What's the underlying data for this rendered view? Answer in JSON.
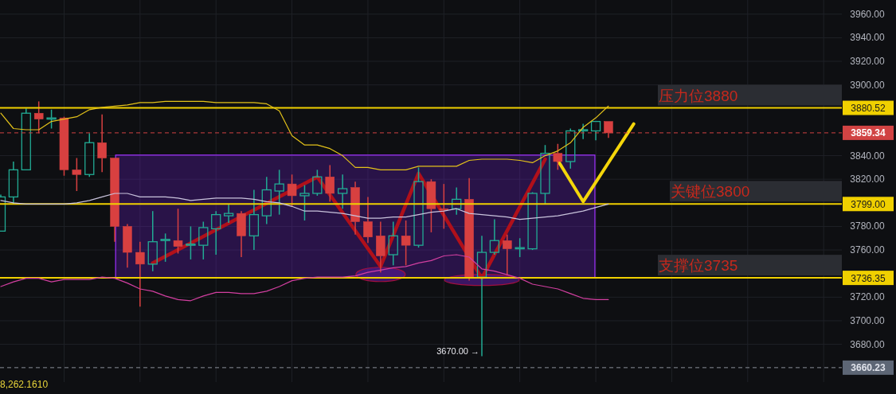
{
  "chart_data": {
    "type": "candlestick",
    "categories": [
      null,
      null,
      null,
      null,
      null,
      null,
      null,
      null,
      null,
      null,
      null,
      null,
      null,
      null,
      null,
      null,
      null,
      null,
      null,
      null,
      null,
      null,
      null,
      null,
      null,
      null,
      null,
      null,
      null,
      null,
      null,
      null,
      null,
      null,
      null,
      null,
      null,
      null,
      null,
      null,
      null,
      null,
      null,
      null,
      null,
      null,
      null,
      null,
      null,
      null,
      null,
      null,
      null,
      null,
      null,
      null,
      null,
      null,
      null,
      null,
      null,
      null,
      null,
      null,
      null,
      null,
      null
    ],
    "ohlc": [
      [
        3776,
        3807,
        3776,
        3805
      ],
      [
        3805,
        3835,
        3799,
        3828
      ],
      [
        3828,
        3880,
        3828,
        3876
      ],
      [
        3876,
        3886,
        3859,
        3871
      ],
      [
        3871,
        3879,
        3863,
        3872
      ],
      [
        3872,
        3873,
        3823,
        3828
      ],
      [
        3828,
        3838,
        3810,
        3824
      ],
      [
        3824,
        3859,
        3822,
        3851
      ],
      [
        3851,
        3875,
        3826,
        3838
      ],
      [
        3838,
        3838,
        3767,
        3780
      ],
      [
        3780,
        3782,
        3745,
        3758
      ],
      [
        3758,
        3767,
        3712,
        3748
      ],
      [
        3748,
        3793,
        3742,
        3767
      ],
      [
        3768,
        3774,
        3750,
        3769
      ],
      [
        3768,
        3795,
        3757,
        3763
      ],
      [
        3764,
        3780,
        3752,
        3765
      ],
      [
        3764,
        3784,
        3752,
        3779
      ],
      [
        3778,
        3793,
        3756,
        3790
      ],
      [
        3789,
        3799,
        3783,
        3791
      ],
      [
        3791,
        3793,
        3754,
        3772
      ],
      [
        3772,
        3811,
        3760,
        3790
      ],
      [
        3789,
        3822,
        3782,
        3811
      ],
      [
        3810,
        3828,
        3790,
        3816
      ],
      [
        3816,
        3824,
        3797,
        3806
      ],
      [
        3806,
        3815,
        3785,
        3808
      ],
      [
        3808,
        3828,
        3806,
        3822
      ],
      [
        3822,
        3832,
        3801,
        3808
      ],
      [
        3808,
        3824,
        3795,
        3812
      ],
      [
        3813,
        3818,
        3773,
        3784
      ],
      [
        3784,
        3805,
        3766,
        3771
      ],
      [
        3772,
        3784,
        3741,
        3755
      ],
      [
        3756,
        3784,
        3747,
        3772
      ],
      [
        3772,
        3785,
        3747,
        3764
      ],
      [
        3764,
        3830,
        3762,
        3818
      ],
      [
        3818,
        3820,
        3775,
        3795
      ],
      [
        3795,
        3816,
        3778,
        3794
      ],
      [
        3795,
        3813,
        3790,
        3803
      ],
      [
        3803,
        3821,
        3734,
        3737
      ],
      [
        3737,
        3772,
        3670,
        3758
      ],
      [
        3758,
        3786,
        3756,
        3768
      ],
      [
        3768,
        3773,
        3739,
        3761
      ],
      [
        3761,
        3770,
        3754,
        3762
      ],
      [
        3761,
        3809,
        3760,
        3808
      ],
      [
        3808,
        3849,
        3799,
        3842
      ],
      [
        3842,
        3850,
        3828,
        3835
      ],
      [
        3835,
        3863,
        3829,
        3861
      ],
      [
        3861,
        3867,
        3854,
        3862
      ],
      [
        3861,
        3869,
        3853,
        3869
      ],
      [
        3869,
        3869,
        3855,
        3859.34
      ],
      null,
      null,
      null,
      null,
      null,
      null,
      null,
      null,
      null,
      null,
      null,
      null,
      null,
      null,
      null,
      null,
      null,
      null
    ],
    "colors": [
      "#22ab94",
      "#22ab94",
      "#22ab94",
      "#d84040",
      "#22ab94",
      "#d84040",
      "#d84040",
      "#22ab94",
      "#d84040",
      "#d84040",
      "#d84040",
      "#d84040",
      "#22ab94",
      "#22ab94",
      "#d84040",
      "#22ab94",
      "#22ab94",
      "#22ab94",
      "#22ab94",
      "#d84040",
      "#22ab94",
      "#22ab94",
      "#22ab94",
      "#d84040",
      "#22ab94",
      "#22ab94",
      "#d84040",
      "#22ab94",
      "#d84040",
      "#d84040",
      "#d84040",
      "#22ab94",
      "#d84040",
      "#22ab94",
      "#d84040",
      "#d84040",
      "#22ab94",
      "#d84040",
      "#22ab94",
      "#22ab94",
      "#d84040",
      "#22ab94",
      "#22ab94",
      "#22ab94",
      "#d84040",
      "#22ab94",
      "#22ab94",
      "#22ab94",
      "#d84040",
      null,
      null,
      null,
      null,
      null,
      null,
      null,
      null,
      null,
      null,
      null,
      null,
      null,
      null,
      null,
      null,
      null,
      null
    ],
    "series": [
      {
        "type": "line",
        "color": "#e3c21a",
        "values": [
          3876,
          3863,
          3862,
          3862,
          3869,
          3871,
          3873,
          3879,
          3881,
          3882,
          3883,
          3885,
          3885,
          3886,
          3886,
          3886,
          3886,
          3885,
          3885,
          3885,
          3885,
          3884,
          3878,
          3857,
          3849,
          3849,
          3846,
          3840,
          3830,
          3830,
          3828,
          3828,
          3828,
          3831,
          3831,
          3831,
          3831,
          3836,
          3837,
          null,
          3837,
          3836,
          3834,
          3840,
          3844,
          3851,
          3864,
          3872,
          3882,
          null,
          null,
          null,
          null,
          null,
          null,
          null,
          null,
          null,
          null,
          null,
          null,
          null,
          null,
          null,
          null,
          null,
          null
        ]
      },
      {
        "type": "line",
        "color": "#c9c3dc",
        "values": [
          3802,
          3800,
          3799,
          3799,
          3799,
          3799,
          3800,
          3802,
          3805,
          3808,
          3808,
          3805,
          3805,
          3805,
          3804,
          3802,
          3803,
          3804,
          3804,
          3804,
          3803,
          3801,
          3800,
          3797,
          3793,
          3793,
          3792,
          3791,
          3789,
          3787,
          3787,
          3788,
          3788,
          3790,
          3792,
          3793,
          3795,
          3791,
          3790,
          3789,
          3788,
          3786,
          3787,
          3788,
          3789,
          3791,
          3793,
          3796,
          3799,
          null,
          null,
          null,
          null,
          null,
          null,
          null,
          null,
          null,
          null,
          null,
          null,
          null,
          null,
          null,
          null,
          null,
          null
        ]
      },
      {
        "type": "line",
        "color": "#d23fa0",
        "values": [
          3729,
          3733,
          3736,
          3736,
          3733,
          3735,
          3735,
          3735,
          3737,
          3736,
          3732,
          3727,
          3725,
          3721,
          3718,
          3717,
          3721,
          3724,
          3724,
          3723,
          3723,
          3725,
          3729,
          3734,
          3736,
          3737,
          3737,
          3737,
          3738,
          3741,
          3743,
          3745,
          3746,
          3749,
          3751,
          3755,
          3756,
          3754,
          3744,
          3742,
          3739,
          3736,
          3731,
          3729,
          3727,
          3723,
          3719,
          3718,
          3718,
          null,
          null,
          null,
          null,
          null,
          null,
          null,
          null,
          null,
          null,
          null,
          null,
          null,
          null,
          null,
          null,
          null,
          null
        ]
      },
      {
        "type": "line",
        "color": "#b0101a",
        "values": [
          null,
          null,
          null,
          null,
          null,
          null,
          null,
          null,
          null,
          null,
          null,
          null,
          3749,
          null,
          null,
          null,
          null,
          null,
          null,
          null,
          null,
          null,
          null,
          null,
          null,
          3822,
          null,
          null,
          null,
          null,
          3746,
          null,
          null,
          3825,
          null,
          null,
          null,
          null,
          3736,
          null,
          null,
          null,
          null,
          3837,
          null,
          null,
          null,
          null,
          null,
          null,
          null,
          null,
          null,
          null,
          null,
          null,
          null,
          null,
          null,
          null,
          null,
          null,
          null,
          null,
          null,
          null,
          null
        ]
      },
      {
        "type": "line",
        "color": "#f5d60a",
        "values": [
          null,
          null,
          null,
          null,
          null,
          null,
          null,
          null,
          null,
          null,
          null,
          null,
          null,
          null,
          null,
          null,
          null,
          null,
          null,
          null,
          null,
          null,
          null,
          null,
          null,
          null,
          null,
          null,
          null,
          null,
          null,
          null,
          null,
          null,
          null,
          null,
          null,
          null,
          null,
          null,
          null,
          null,
          null,
          null,
          3836,
          null,
          3801,
          null,
          null,
          null,
          3867,
          null,
          null,
          null,
          null,
          null,
          null,
          null,
          null,
          null,
          null,
          null,
          null,
          null,
          null,
          null,
          null
        ]
      }
    ],
    "ylim": [
      3648,
      3972
    ],
    "yticks": [
      {
        "value": 3680,
        "label": "3680.00"
      },
      {
        "value": 3700,
        "label": "3700.00"
      },
      {
        "value": 3720,
        "label": "3720.00"
      },
      {
        "value": 3760,
        "label": "3760.00"
      },
      {
        "value": 3780,
        "label": "3780.00"
      },
      {
        "value": 3820,
        "label": "3820.00"
      },
      {
        "value": 3840,
        "label": "3840.00"
      },
      {
        "value": 3900,
        "label": "3900.00"
      },
      {
        "value": 3920,
        "label": "3920.00"
      },
      {
        "value": 3940,
        "label": "3940.00"
      },
      {
        "value": 3960,
        "label": "3960.00"
      }
    ],
    "ref_lines": [
      {
        "axis": "y",
        "value": 3880.52,
        "label": "3880.52",
        "color": "#f0d000",
        "line_style": "solid"
      },
      {
        "axis": "y",
        "value": 3859.34,
        "label": "3859.34",
        "color": "#d14343",
        "line_style": "dashed"
      },
      {
        "axis": "y",
        "value": 3799.0,
        "label": "3799.00",
        "color": "#f0d000",
        "line_style": "solid"
      },
      {
        "axis": "y",
        "value": 3736.35,
        "label": "3736.35",
        "color": "#f0d000",
        "line_style": "solid"
      },
      {
        "axis": "y",
        "value": 3660.23,
        "label": "3660.23",
        "color": "#8a8f99",
        "line_style": "dashed"
      }
    ],
    "annotations": [
      "压力位3880",
      "关键位3800",
      "支撑位3735",
      "3670.00 →",
      "8,262.1610"
    ],
    "grid": true
  }
}
